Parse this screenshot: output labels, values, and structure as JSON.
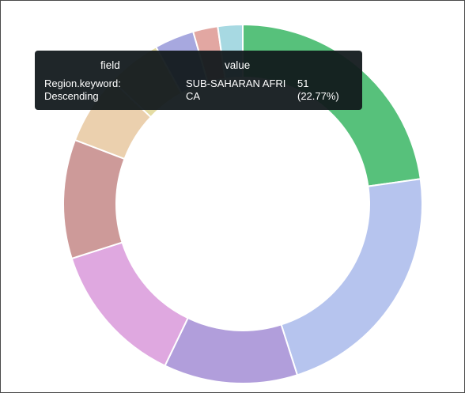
{
  "tooltip": {
    "header_field": "field",
    "header_value": "value",
    "row": {
      "field_line_1": "Region.keyword:",
      "field_line_2": "Descending",
      "value_line_1": "SUB-SAHARAN AFRI",
      "value_line_2": "CA",
      "count_line_1": "51",
      "count_line_2": "(22.77%)"
    }
  },
  "chart_data": {
    "type": "pie",
    "donut": true,
    "series_field": "Region.keyword: Descending",
    "slices": [
      {
        "label": "SUB-SAHARAN AFRICA",
        "value": 51,
        "percent": 22.77,
        "color": "#57c17b"
      },
      {
        "label": "",
        "value": 50,
        "color": "#b6c4ee"
      },
      {
        "label": "",
        "value": 27,
        "color": "#b19edb"
      },
      {
        "label": "",
        "value": 29,
        "color": "#dfa8e0"
      },
      {
        "label": "",
        "value": 24,
        "color": "#cd9a99"
      },
      {
        "label": "",
        "value": 14,
        "color": "#ebd0ae"
      },
      {
        "label": "",
        "value": 11,
        "color": "#e4dca3"
      },
      {
        "label": "",
        "value": 8,
        "color": "#a7a8df"
      },
      {
        "label": "",
        "value": 5,
        "color": "#e2a7a2"
      },
      {
        "label": "",
        "value": 5,
        "color": "#a7d9e2"
      }
    ]
  }
}
